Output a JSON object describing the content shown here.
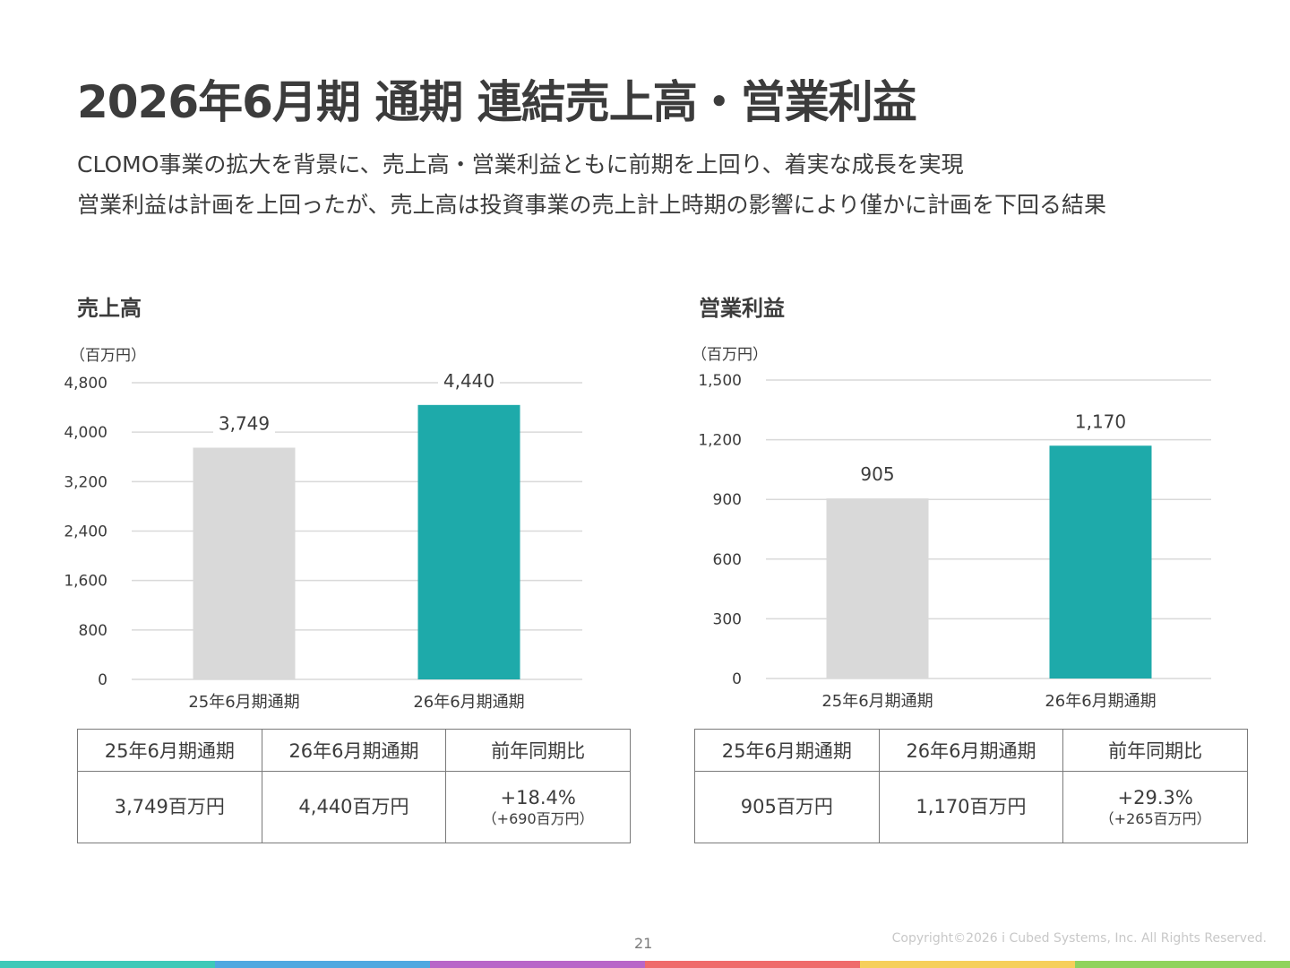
{
  "title": "2026年6月期 通期 連結売上高・営業利益",
  "subtitle_lines": [
    "CLOMO事業の拡大を背景に、売上高・営業利益ともに前期を上回り、着実な成長を実現",
    "営業利益は計画を上回ったが、売上高は投資事業の売上計上時期の影響により僅かに計画を下回る結果"
  ],
  "chart_data": [
    {
      "type": "bar",
      "title": "売上高",
      "ylabel": "（百万円）",
      "categories": [
        "25年6月期通期",
        "26年6月期通期"
      ],
      "values": [
        3749,
        4440
      ],
      "value_labels": [
        "3,749",
        "4,440"
      ],
      "ylim": [
        0,
        4800
      ],
      "yticks": [
        0,
        800,
        1600,
        2400,
        3200,
        4000,
        4800
      ],
      "ytick_labels": [
        "0",
        "800",
        "1,600",
        "2,400",
        "3,200",
        "4,000",
        "4,800"
      ],
      "bar_colors": [
        "#d9d9d9",
        "#1eaaaa"
      ],
      "grid": true,
      "legend": "none"
    },
    {
      "type": "bar",
      "title": "営業利益",
      "ylabel": "（百万円）",
      "categories": [
        "25年6月期通期",
        "26年6月期通期"
      ],
      "values": [
        905,
        1170
      ],
      "value_labels": [
        "905",
        "1,170"
      ],
      "ylim": [
        0,
        1500
      ],
      "yticks": [
        0,
        300,
        600,
        900,
        1200,
        1500
      ],
      "ytick_labels": [
        "0",
        "300",
        "600",
        "900",
        "1,200",
        "1,500"
      ],
      "bar_colors": [
        "#d9d9d9",
        "#1eaaaa"
      ],
      "grid": true,
      "legend": "none"
    }
  ],
  "tables": [
    {
      "headers": [
        "25年6月期通期",
        "26年6月期通期",
        "前年同期比"
      ],
      "prev": "3,749百万円",
      "curr": "4,440百万円",
      "change_pct": "+18.4%",
      "change_amt": "（+690百万円）"
    },
    {
      "headers": [
        "25年6月期通期",
        "26年6月期通期",
        "前年同期比"
      ],
      "prev": "905百万円",
      "curr": "1,170百万円",
      "change_pct": "+29.3%",
      "change_amt": "（+265百万円）"
    }
  ],
  "footer": {
    "page_number": "21",
    "copyright": "Copyright©2026 i Cubed Systems, Inc. All Rights Reserved."
  },
  "colors": {
    "accent": "#1eaaaa",
    "previous_bar": "#d9d9d9",
    "gridline": "#d9d9d9",
    "bottom_bar": [
      "#3ec9b8",
      "#4fa8e0",
      "#b866c8",
      "#ef6b6b",
      "#f6cf5a",
      "#8fd35c"
    ]
  }
}
